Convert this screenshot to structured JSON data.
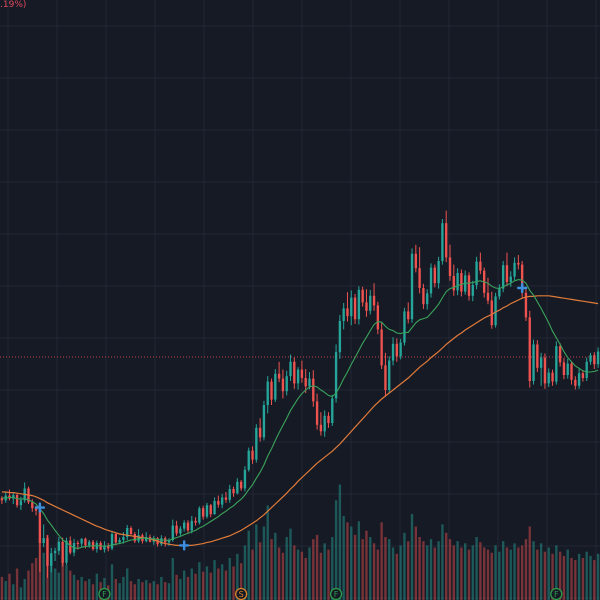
{
  "header": {
    "change_text": ".19%)"
  },
  "colors": {
    "background": "#161a25",
    "grid": "#232734",
    "up": "#26a69a",
    "down": "#ef5350",
    "ma_fast": "#3aa35b",
    "ma_slow": "#e07b39",
    "price_line": "#c0404a",
    "signal": "#3d8fe0",
    "marker_green": "#2e9b4a",
    "marker_orange": "#d9822b"
  },
  "chart_data": {
    "type": "candlestick",
    "ylim": [
      0,
      100
    ],
    "volume_ylim": [
      0,
      100
    ],
    "current_price": 40.5,
    "candles": [
      [
        17.0,
        17.3,
        16.0,
        16.6
      ],
      [
        16.6,
        18.0,
        16.2,
        17.4
      ],
      [
        17.4,
        18.4,
        16.6,
        16.9
      ],
      [
        16.9,
        17.8,
        16.0,
        17.5
      ],
      [
        17.5,
        17.7,
        15.4,
        15.8
      ],
      [
        15.8,
        17.2,
        15.0,
        16.6
      ],
      [
        16.6,
        19.6,
        16.2,
        18.6
      ],
      [
        18.6,
        18.9,
        16.0,
        16.3
      ],
      [
        16.3,
        16.8,
        14.7,
        15.3
      ],
      [
        15.3,
        15.7,
        14.1,
        14.9
      ],
      [
        14.9,
        15.3,
        4.7,
        9.5
      ],
      [
        9.5,
        12.6,
        8.8,
        10.3
      ],
      [
        10.3,
        10.8,
        3.7,
        5.7
      ],
      [
        5.7,
        8.7,
        4.6,
        7.8
      ],
      [
        7.8,
        8.7,
        6.5,
        8.2
      ],
      [
        8.2,
        10.5,
        7.5,
        9.7
      ],
      [
        9.7,
        10.4,
        5.6,
        6.2
      ],
      [
        6.2,
        10.4,
        5.8,
        9.9
      ],
      [
        9.9,
        10.6,
        7.6,
        7.9
      ],
      [
        7.9,
        10.2,
        7.3,
        9.5
      ],
      [
        9.5,
        9.9,
        8.4,
        9.4
      ],
      [
        9.4,
        10.3,
        8.9,
        10.2
      ],
      [
        10.2,
        10.4,
        8.6,
        9.1
      ],
      [
        9.1,
        10.0,
        8.7,
        9.7
      ],
      [
        9.7,
        10.0,
        8.2,
        8.5
      ],
      [
        8.5,
        9.9,
        7.9,
        9.5
      ],
      [
        9.5,
        9.8,
        8.3,
        8.4
      ],
      [
        8.4,
        9.8,
        7.9,
        9.1
      ],
      [
        9.1,
        9.5,
        8.1,
        8.6
      ],
      [
        8.6,
        11.4,
        8.3,
        11.0
      ],
      [
        11.0,
        11.2,
        9.1,
        9.6
      ],
      [
        9.6,
        10.4,
        9.4,
        10.0
      ],
      [
        10.0,
        11.3,
        9.4,
        10.5
      ],
      [
        10.5,
        12.5,
        10.0,
        12.0
      ],
      [
        12.0,
        12.3,
        10.8,
        11.0
      ],
      [
        11.0,
        11.3,
        9.5,
        9.8
      ],
      [
        9.8,
        11.8,
        9.5,
        10.8
      ],
      [
        10.8,
        11.1,
        9.4,
        9.8
      ],
      [
        9.8,
        11.3,
        9.6,
        10.5
      ],
      [
        10.5,
        10.9,
        9.6,
        9.7
      ],
      [
        9.7,
        10.7,
        9.2,
        10.3
      ],
      [
        10.3,
        10.5,
        8.9,
        9.3
      ],
      [
        9.3,
        10.8,
        9.0,
        10.3
      ],
      [
        10.3,
        10.6,
        8.9,
        9.6
      ],
      [
        9.6,
        10.3,
        9.0,
        10.0
      ],
      [
        10.0,
        13.4,
        9.7,
        12.4
      ],
      [
        12.4,
        13.2,
        10.7,
        11.1
      ],
      [
        11.1,
        12.3,
        10.7,
        11.9
      ],
      [
        11.9,
        13.3,
        11.4,
        12.9
      ],
      [
        12.9,
        13.3,
        11.2,
        11.6
      ],
      [
        11.6,
        14.0,
        11.1,
        13.2
      ],
      [
        13.2,
        13.8,
        12.4,
        12.9
      ],
      [
        12.9,
        15.6,
        12.6,
        15.3
      ],
      [
        15.3,
        15.7,
        13.4,
        13.9
      ],
      [
        13.9,
        16.2,
        13.6,
        15.8
      ],
      [
        15.8,
        16.0,
        13.8,
        14.3
      ],
      [
        14.3,
        17.1,
        14.2,
        16.5
      ],
      [
        16.5,
        17.4,
        15.4,
        15.9
      ],
      [
        15.9,
        17.7,
        15.3,
        17.1
      ],
      [
        17.1,
        18.0,
        16.2,
        16.7
      ],
      [
        16.7,
        19.2,
        16.2,
        18.5
      ],
      [
        18.5,
        18.9,
        17.2,
        17.8
      ],
      [
        17.8,
        20.3,
        17.6,
        19.7
      ],
      [
        19.7,
        20.0,
        18.2,
        18.6
      ],
      [
        18.6,
        22.3,
        18.1,
        21.7
      ],
      [
        21.7,
        25.4,
        21.4,
        24.9
      ],
      [
        24.9,
        25.6,
        22.7,
        23.4
      ],
      [
        23.4,
        29.3,
        22.9,
        28.7
      ],
      [
        28.7,
        30.3,
        26.4,
        27.1
      ],
      [
        27.1,
        33.2,
        26.6,
        32.5
      ],
      [
        32.5,
        37.3,
        31.1,
        36.4
      ],
      [
        36.4,
        36.9,
        32.5,
        33.4
      ],
      [
        33.4,
        38.5,
        33.0,
        37.7
      ],
      [
        37.7,
        39.7,
        36.3,
        36.9
      ],
      [
        36.9,
        38.4,
        33.6,
        34.8
      ],
      [
        34.8,
        38.2,
        34.1,
        37.3
      ],
      [
        37.3,
        40.9,
        36.5,
        39.7
      ],
      [
        39.7,
        40.4,
        35.2,
        36.1
      ],
      [
        36.1,
        38.8,
        35.1,
        38.4
      ],
      [
        38.4,
        39.9,
        36.2,
        37.0
      ],
      [
        37.0,
        38.5,
        34.5,
        35.6
      ],
      [
        35.6,
        38.0,
        35.1,
        36.9
      ],
      [
        36.9,
        38.3,
        32.2,
        33.1
      ],
      [
        33.1,
        34.4,
        28.4,
        29.2
      ],
      [
        29.2,
        31.3,
        27.4,
        28.1
      ],
      [
        28.1,
        31.6,
        27.2,
        30.7
      ],
      [
        30.7,
        31.3,
        28.7,
        29.5
      ],
      [
        29.5,
        34.2,
        29.0,
        33.6
      ],
      [
        33.6,
        42.6,
        32.9,
        41.3
      ],
      [
        41.3,
        47.5,
        40.2,
        46.5
      ],
      [
        46.5,
        49.5,
        45.1,
        48.6
      ],
      [
        48.6,
        51.3,
        46.4,
        47.3
      ],
      [
        47.3,
        51.6,
        45.8,
        50.4
      ],
      [
        50.4,
        51.0,
        46.0,
        46.8
      ],
      [
        46.8,
        52.3,
        45.9,
        51.7
      ],
      [
        51.7,
        52.2,
        48.9,
        49.6
      ],
      [
        49.6,
        51.8,
        47.2,
        48.2
      ],
      [
        48.2,
        51.7,
        47.6,
        50.7
      ],
      [
        50.7,
        52.8,
        48.2,
        49.1
      ],
      [
        49.1,
        49.7,
        44.3,
        45.1
      ],
      [
        45.1,
        46.2,
        38.5,
        39.1
      ],
      [
        39.1,
        41.2,
        33.9,
        35.0
      ],
      [
        35.0,
        40.6,
        34.5,
        39.9
      ],
      [
        39.9,
        43.8,
        39.1,
        42.7
      ],
      [
        42.7,
        43.6,
        39.7,
        40.6
      ],
      [
        40.6,
        43.5,
        40.1,
        42.9
      ],
      [
        42.9,
        48.7,
        42.4,
        48.1
      ],
      [
        48.1,
        49.6,
        46.1,
        46.8
      ],
      [
        46.8,
        58.6,
        46.2,
        57.7
      ],
      [
        57.7,
        59.2,
        54.6,
        55.3
      ],
      [
        55.3,
        58.8,
        51.1,
        52.0
      ],
      [
        52.0,
        52.7,
        48.5,
        49.3
      ],
      [
        49.3,
        51.8,
        48.4,
        51.1
      ],
      [
        51.1,
        56.1,
        50.4,
        55.4
      ],
      [
        55.4,
        55.9,
        52.1,
        52.8
      ],
      [
        52.8,
        57.2,
        51.9,
        56.5
      ],
      [
        56.5,
        63.5,
        55.9,
        62.8
      ],
      [
        62.8,
        64.9,
        56.3,
        57.1
      ],
      [
        57.1,
        59.2,
        53.2,
        54.0
      ],
      [
        54.0,
        55.9,
        50.7,
        51.6
      ],
      [
        51.6,
        55.3,
        50.8,
        54.5
      ],
      [
        54.5,
        55.1,
        50.6,
        51.4
      ],
      [
        51.4,
        54.9,
        50.9,
        54.1
      ],
      [
        54.1,
        54.6,
        49.9,
        50.7
      ],
      [
        50.7,
        53.2,
        49.8,
        52.5
      ],
      [
        52.5,
        57.2,
        51.8,
        56.4
      ],
      [
        56.4,
        57.9,
        54.3,
        54.9
      ],
      [
        54.9,
        55.4,
        50.4,
        51.2
      ],
      [
        51.2,
        53.7,
        49.3,
        49.9
      ],
      [
        49.9,
        51.4,
        45.2,
        45.8
      ],
      [
        45.8,
        51.2,
        45.4,
        50.6
      ],
      [
        50.6,
        52.6,
        50.1,
        51.9
      ],
      [
        51.9,
        56.5,
        51.3,
        55.8
      ],
      [
        55.8,
        57.9,
        52.3,
        53.0
      ],
      [
        53.0,
        54.8,
        52.2,
        53.9
      ],
      [
        53.9,
        57.1,
        53.3,
        56.2
      ],
      [
        56.2,
        57.5,
        55.1,
        55.9
      ],
      [
        55.9,
        56.5,
        50.4,
        51.2
      ],
      [
        51.2,
        52.0,
        46.5,
        47.1
      ],
      [
        47.1,
        48.2,
        35.4,
        36.5
      ],
      [
        36.5,
        43.4,
        35.9,
        42.6
      ],
      [
        42.6,
        43.3,
        38.0,
        38.7
      ],
      [
        38.7,
        41.2,
        35.7,
        40.4
      ],
      [
        40.4,
        41.1,
        35.2,
        36.1
      ],
      [
        36.1,
        38.6,
        35.5,
        37.9
      ],
      [
        37.9,
        38.4,
        35.7,
        36.4
      ],
      [
        36.4,
        43.1,
        35.9,
        42.3
      ],
      [
        42.3,
        42.8,
        38.9,
        39.6
      ],
      [
        39.6,
        40.3,
        36.8,
        37.5
      ],
      [
        37.5,
        40.2,
        36.9,
        39.4
      ],
      [
        39.4,
        39.8,
        35.9,
        36.7
      ],
      [
        36.7,
        37.3,
        35.1,
        35.7
      ],
      [
        35.7,
        38.5,
        35.2,
        37.8
      ],
      [
        37.8,
        38.3,
        36.4,
        37.0
      ],
      [
        37.0,
        40.4,
        36.5,
        39.7
      ],
      [
        39.7,
        41.2,
        39.2,
        40.8
      ],
      [
        40.8,
        41.3,
        38.5,
        39.3
      ],
      [
        39.3,
        42.1,
        38.7,
        41.4
      ]
    ],
    "volume": [
      22,
      18,
      25,
      15,
      30,
      12,
      20,
      28,
      35,
      40,
      58,
      45,
      62,
      38,
      30,
      26,
      41,
      33,
      28,
      24,
      19,
      22,
      18,
      20,
      15,
      25,
      17,
      21,
      14,
      34,
      20,
      16,
      22,
      30,
      18,
      15,
      20,
      17,
      19,
      16,
      18,
      15,
      22,
      17,
      16,
      40,
      24,
      20,
      28,
      22,
      30,
      25,
      36,
      27,
      32,
      26,
      38,
      30,
      34,
      28,
      40,
      32,
      44,
      35,
      52,
      66,
      48,
      72,
      55,
      70,
      90,
      58,
      64,
      50,
      45,
      60,
      68,
      52,
      48,
      46,
      40,
      50,
      58,
      62,
      45,
      54,
      48,
      60,
      95,
      110,
      80,
      74,
      70,
      62,
      75,
      58,
      66,
      60,
      54,
      48,
      74,
      60,
      58,
      50,
      44,
      52,
      64,
      56,
      82,
      70,
      60,
      56,
      52,
      58,
      50,
      56,
      72,
      64,
      58,
      52,
      56,
      50,
      54,
      48,
      52,
      60,
      55,
      50,
      48,
      45,
      52,
      46,
      56,
      50,
      48,
      54,
      50,
      52,
      58,
      70,
      56,
      48,
      54,
      46,
      50,
      44,
      52,
      46,
      42,
      48,
      40,
      38,
      44,
      40,
      46,
      42,
      38,
      44
    ],
    "ma_fast": [
      17.0,
      17.0,
      17.1,
      17.1,
      16.9,
      16.8,
      16.9,
      16.7,
      16.4,
      16.0,
      15.2,
      14.4,
      13.3,
      12.5,
      11.6,
      10.8,
      10.0,
      9.6,
      9.1,
      8.7,
      8.6,
      8.8,
      8.9,
      9.0,
      9.0,
      9.1,
      9.0,
      9.0,
      9.0,
      9.2,
      9.3,
      9.4,
      9.6,
      9.8,
      10.0,
      10.1,
      10.2,
      10.3,
      10.3,
      10.2,
      10.2,
      10.1,
      10.0,
      10.0,
      9.9,
      10.2,
      10.4,
      10.6,
      10.9,
      11.1,
      11.4,
      11.6,
      12.0,
      12.3,
      12.7,
      13.1,
      13.5,
      13.9,
      14.4,
      14.8,
      15.3,
      15.7,
      16.3,
      16.8,
      17.5,
      18.4,
      19.2,
      20.3,
      21.3,
      22.5,
      24.0,
      25.2,
      26.6,
      27.9,
      29.1,
      30.3,
      31.6,
      32.6,
      33.6,
      34.4,
      35.0,
      35.5,
      35.7,
      35.5,
      35.0,
      34.6,
      34.1,
      33.9,
      34.5,
      35.6,
      36.9,
      38.0,
      39.3,
      40.4,
      41.6,
      42.8,
      43.8,
      44.9,
      45.9,
      46.4,
      46.3,
      45.6,
      45.1,
      44.9,
      44.5,
      44.4,
      44.6,
      44.6,
      45.4,
      46.2,
      46.7,
      46.9,
      47.1,
      47.8,
      48.5,
      49.3,
      50.4,
      51.4,
      51.9,
      52.1,
      52.4,
      52.6,
      52.8,
      52.8,
      52.9,
      53.1,
      53.2,
      53.0,
      52.8,
      52.3,
      52.0,
      51.9,
      52.2,
      52.5,
      52.8,
      53.2,
      53.4,
      53.3,
      52.8,
      51.6,
      50.8,
      49.7,
      48.6,
      47.4,
      46.2,
      44.8,
      43.7,
      42.6,
      41.4,
      40.4,
      39.7,
      39.0,
      38.6,
      38.2,
      38.0,
      38.0,
      38.1,
      38.3
    ],
    "ma_slow": [
      18.0,
      18.0,
      17.9,
      17.9,
      17.8,
      17.7,
      17.6,
      17.5,
      17.4,
      17.2,
      16.9,
      16.6,
      16.2,
      15.9,
      15.6,
      15.3,
      15.0,
      14.7,
      14.4,
      14.1,
      13.8,
      13.5,
      13.2,
      12.9,
      12.6,
      12.3,
      12.1,
      11.8,
      11.6,
      11.4,
      11.2,
      11.0,
      10.9,
      10.8,
      10.7,
      10.6,
      10.5,
      10.4,
      10.3,
      10.2,
      10.0,
      9.8,
      9.6,
      9.4,
      9.3,
      9.2,
      9.1,
      9.1,
      9.1,
      9.1,
      9.1,
      9.2,
      9.3,
      9.4,
      9.6,
      9.7,
      9.9,
      10.1,
      10.3,
      10.5,
      10.7,
      11.0,
      11.3,
      11.6,
      12.0,
      12.4,
      12.8,
      13.2,
      13.7,
      14.2,
      14.8,
      15.4,
      16.0,
      16.6,
      17.2,
      17.8,
      18.5,
      19.1,
      19.8,
      20.4,
      21.0,
      21.6,
      22.2,
      22.8,
      23.3,
      23.8,
      24.3,
      24.8,
      25.4,
      26.0,
      26.7,
      27.4,
      28.1,
      28.8,
      29.5,
      30.2,
      30.9,
      31.6,
      32.3,
      32.9,
      33.5,
      34.0,
      34.5,
      35.0,
      35.5,
      36.0,
      36.5,
      37.0,
      37.6,
      38.2,
      38.8,
      39.3,
      39.8,
      40.4,
      40.9,
      41.4,
      42.0,
      42.6,
      43.1,
      43.6,
      44.1,
      44.5,
      45.0,
      45.4,
      45.8,
      46.2,
      46.6,
      47.0,
      47.3,
      47.6,
      48.0,
      48.3,
      48.7,
      49.0,
      49.4,
      49.7,
      50.0,
      50.3,
      50.5,
      50.6,
      50.6,
      50.7,
      50.7,
      50.7,
      50.7,
      50.6,
      50.5,
      50.4,
      50.3,
      50.2,
      50.1,
      50.0,
      49.9,
      49.8,
      49.7,
      49.6,
      49.5,
      49.4
    ],
    "signals": [
      {
        "index": 10,
        "value": 15.4
      },
      {
        "index": 48,
        "value": 9.1
      },
      {
        "index": 137,
        "value": 52.0
      }
    ],
    "event_markers": [
      {
        "label": "F",
        "index": 27,
        "color": "green"
      },
      {
        "label": "S",
        "index": 63,
        "color": "orange"
      },
      {
        "label": "F",
        "index": 88,
        "color": "green"
      },
      {
        "label": "F",
        "index": 146,
        "color": "green"
      }
    ]
  }
}
